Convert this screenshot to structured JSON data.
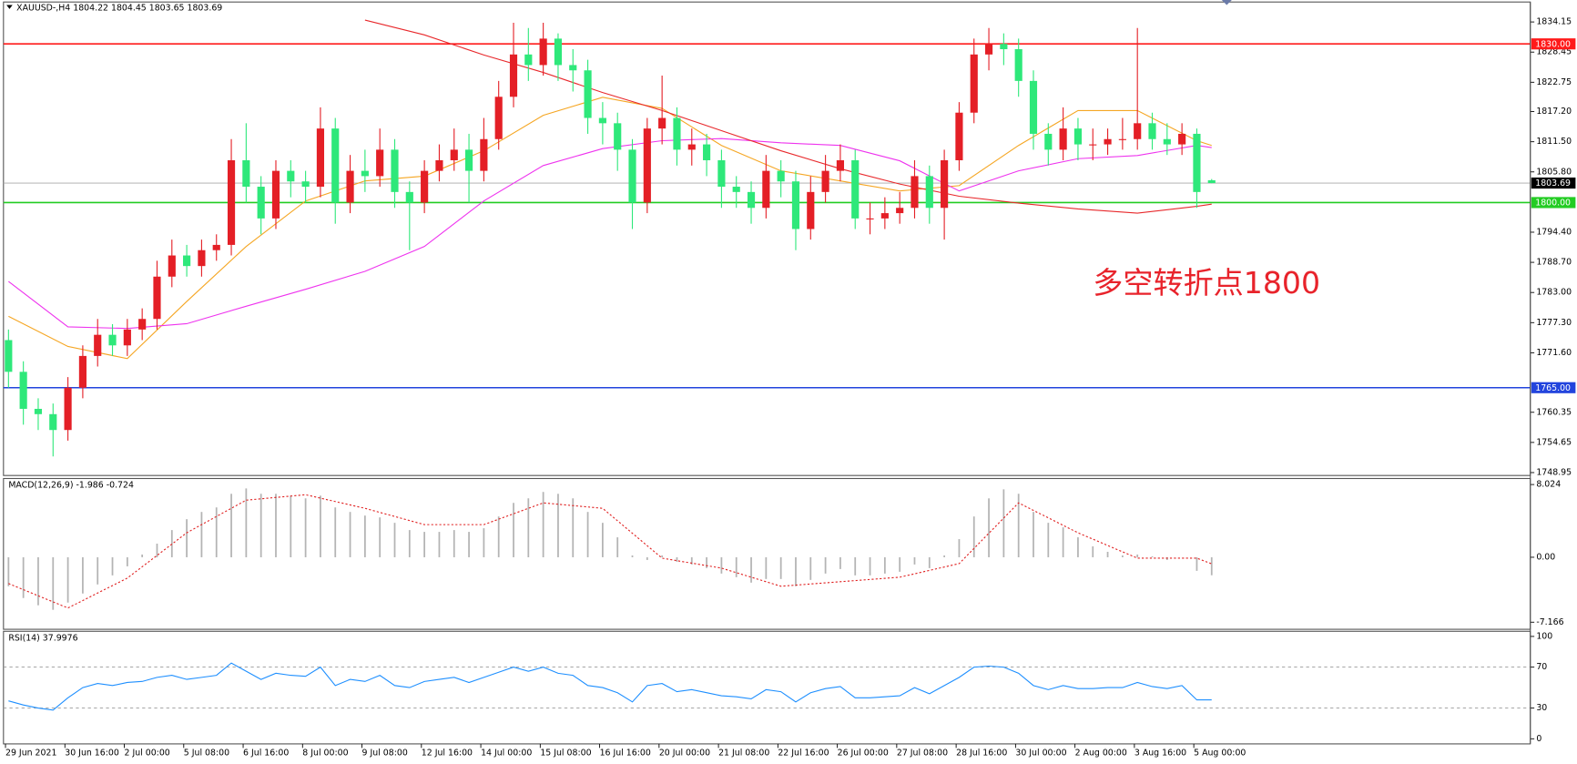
{
  "chart_data": [
    {
      "type": "candlestick",
      "title": "XAUUSD-,H4  1804.22 1804.45 1803.65 1803.69",
      "up_color": "#e41f26",
      "down_color": "#2ee87a",
      "open": [
        1774,
        1768,
        1761,
        1760,
        1757,
        1765,
        1771,
        1775,
        1773,
        1776,
        1778,
        1786,
        1790,
        1788,
        1791,
        1792,
        1808,
        1803,
        1797,
        1806,
        1804,
        1803,
        1814,
        1800,
        1806,
        1805,
        1810,
        1802,
        1800,
        1806,
        1808,
        1810,
        1806,
        1812,
        1820,
        1828,
        1826,
        1831,
        1826,
        1825,
        1816,
        1815,
        1810,
        1800,
        1814,
        1816,
        1810,
        1811,
        1808,
        1803,
        1802,
        1799,
        1806,
        1804,
        1795,
        1802,
        1806,
        1808,
        1797,
        1797,
        1798,
        1799,
        1805,
        1799,
        1808,
        1817,
        1828,
        1830,
        1829,
        1823,
        1813,
        1810,
        1814,
        1811,
        1811,
        1812,
        1812,
        1815,
        1812,
        1811,
        1813,
        1804.22
      ],
      "high": [
        1776,
        1770,
        1763,
        1762,
        1767,
        1773,
        1778,
        1777,
        1778,
        1780,
        1789,
        1793,
        1792,
        1793,
        1794,
        1812,
        1815,
        1805,
        1808,
        1808,
        1806,
        1818,
        1816,
        1809,
        1810,
        1814,
        1812,
        1804,
        1808,
        1811,
        1814,
        1813,
        1816,
        1823,
        1834,
        1833,
        1834,
        1832,
        1829,
        1827,
        1819,
        1817,
        1812,
        1816,
        1824,
        1818,
        1814,
        1813,
        1810,
        1805,
        1804,
        1809,
        1808,
        1806,
        1805,
        1809,
        1811,
        1810,
        1800,
        1801,
        1802,
        1808,
        1807,
        1810,
        1819,
        1831,
        1833,
        1832,
        1831,
        1825,
        1815,
        1818,
        1816,
        1814,
        1814,
        1816,
        1833,
        1817,
        1815,
        1815,
        1814,
        1804.45
      ],
      "low": [
        1765,
        1758,
        1757,
        1752,
        1755,
        1763,
        1769,
        1771,
        1771,
        1774,
        1776,
        1784,
        1786,
        1786,
        1789,
        1790,
        1800,
        1794,
        1795,
        1801,
        1800,
        1801,
        1796,
        1798,
        1802,
        1803,
        1799,
        1791,
        1798,
        1804,
        1806,
        1800,
        1804,
        1810,
        1818,
        1823,
        1824,
        1823,
        1821,
        1813,
        1811,
        1806,
        1795,
        1798,
        1811,
        1807,
        1807,
        1805,
        1799,
        1799,
        1796,
        1797,
        1801,
        1791,
        1793,
        1800,
        1804,
        1795,
        1794,
        1795,
        1796,
        1797,
        1796,
        1793,
        1806,
        1815,
        1825,
        1826,
        1820,
        1810,
        1807,
        1808,
        1808,
        1808,
        1809,
        1810,
        1810,
        1810,
        1809,
        1809,
        1799,
        1803.65
      ],
      "close": [
        1768,
        1761,
        1760,
        1757,
        1765,
        1771,
        1775,
        1773,
        1776,
        1778,
        1786,
        1790,
        1788,
        1791,
        1792,
        1808,
        1803,
        1797,
        1806,
        1804,
        1803,
        1814,
        1800,
        1806,
        1805,
        1810,
        1802,
        1800,
        1806,
        1808,
        1810,
        1806,
        1812,
        1820,
        1828,
        1826,
        1831,
        1826,
        1825,
        1816,
        1815,
        1810,
        1800,
        1814,
        1816,
        1810,
        1811,
        1808,
        1803,
        1802,
        1799,
        1806,
        1804,
        1795,
        1802,
        1806,
        1808,
        1797,
        1797,
        1798,
        1799,
        1805,
        1799,
        1808,
        1817,
        1828,
        1830,
        1829,
        1823,
        1813,
        1810,
        1814,
        1811,
        1811,
        1812,
        1812,
        1815,
        1812,
        1811,
        1813,
        1802,
        1803.69
      ],
      "ma_x": [
        0,
        4,
        8,
        12,
        16,
        20,
        24,
        28,
        32,
        36,
        40,
        44,
        48,
        52,
        56,
        60,
        64,
        68,
        72,
        76,
        80,
        81
      ],
      "lines": [
        {
          "color": "#f5a623",
          "values": [
            1778.5,
            1772.8,
            1770.5,
            1781.3,
            1791.7,
            1800.3,
            1804.1,
            1805,
            1809.8,
            1816.5,
            1819.9,
            1817.8,
            1810.8,
            1806,
            1804.1,
            1802.2,
            1803.2,
            1810.8,
            1817.4,
            1817.4,
            1811.7,
            1810.8
          ]
        },
        {
          "color": "#ee33ee",
          "values": [
            1785.1,
            1776.5,
            1776.2,
            1777.1,
            1780.4,
            1783.6,
            1787,
            1791.7,
            1800.3,
            1807,
            1810.2,
            1811.7,
            1812.1,
            1811.3,
            1810.8,
            1807.9,
            1802.2,
            1806,
            1808.3,
            1808.9,
            1810.8,
            1810.4
          ]
        },
        {
          "color": "#e8282b",
          "values": [
            null,
            null,
            null,
            null,
            null,
            null,
            1834.5,
            1831.7,
            1827.9,
            1824.6,
            1820.8,
            1817.4,
            1813.6,
            1809.8,
            1806.4,
            1803.5,
            1801.2,
            1799.9,
            1798.8,
            1798,
            1799.3,
            1799.7
          ]
        }
      ],
      "levels": [
        {
          "value": 1830,
          "label": "1830.00",
          "color": "#ff1a1a",
          "box": "#ff1a1a"
        },
        {
          "value": 1800,
          "label": "1800.00",
          "color": "#22cc22",
          "box": "#22cc22"
        },
        {
          "value": 1765,
          "label": "1765.00",
          "color": "#2244dd",
          "box": "#2244dd"
        },
        {
          "value": 1803.69,
          "color": "#a8a8a8",
          "box": "#000000"
        }
      ],
      "annotation": {
        "text": "多空转折点1800",
        "color": "#e8232b",
        "x": 73,
        "y": 1784.5
      },
      "ylim": [
        1748.4,
        1838.3
      ],
      "yticks": [
        1834.15,
        1828.45,
        1822.75,
        {
          "value": 1817.2,
          "label": "1817.20"
        },
        {
          "value": 1811.5,
          "label": "1811.50"
        },
        {
          "value": 1805.8,
          "label": "1805.80"
        },
        {
          "value": 1794.4,
          "label": "1794.40"
        },
        {
          "value": 1788.7,
          "label": "1788.70"
        },
        {
          "value": 1783,
          "label": "1783.00"
        },
        {
          "value": 1777.3,
          "label": "1777.30"
        },
        {
          "value": 1771.6,
          "label": "1771.60"
        },
        1760.35,
        1754.65,
        1748.95
      ],
      "xticks": [
        {
          "value": 0,
          "label": "29 Jun 2021"
        },
        {
          "value": 4,
          "label": "30 Jun 16:00"
        },
        {
          "value": 8,
          "label": "2 Jul 00:00"
        },
        {
          "value": 12,
          "label": "5 Jul 08:00"
        },
        {
          "value": 16,
          "label": "6 Jul 16:00"
        },
        {
          "value": 20,
          "label": "8 Jul 00:00"
        },
        {
          "value": 24,
          "label": "9 Jul 08:00"
        },
        {
          "value": 28,
          "label": "12 Jul 16:00"
        },
        {
          "value": 32,
          "label": "14 Jul 00:00"
        },
        {
          "value": 36,
          "label": "15 Jul 08:00"
        },
        {
          "value": 40,
          "label": "16 Jul 16:00"
        },
        {
          "value": 44,
          "label": "20 Jul 00:00"
        },
        {
          "value": 48,
          "label": "21 Jul 08:00"
        },
        {
          "value": 52,
          "label": "22 Jul 16:00"
        },
        {
          "value": 56,
          "label": "26 Jul 00:00"
        },
        {
          "value": 60,
          "label": "27 Jul 08:00"
        },
        {
          "value": 64,
          "label": "28 Jul 16:00"
        },
        {
          "value": 68,
          "label": "30 Jul 00:00"
        },
        {
          "value": 72,
          "label": "2 Aug 00:00"
        },
        {
          "value": 76,
          "label": "3 Aug 16:00"
        },
        {
          "value": 80,
          "label": "5 Aug 00:00"
        }
      ]
    },
    {
      "type": "macd",
      "title": "MACD(12,26,9) -1.986 -0.724",
      "bar_color": "#b4b4b4",
      "signal_color": "#e02020",
      "histogram": [
        -3.2,
        -4.5,
        -5.3,
        -5.8,
        -5,
        -4,
        -3,
        -2,
        -1,
        0.3,
        1.5,
        3,
        4.2,
        5,
        5.5,
        7,
        7.6,
        7,
        7,
        6.8,
        6.5,
        6.8,
        5.5,
        5,
        4.6,
        4.4,
        3.8,
        3,
        2.8,
        2.8,
        3,
        2.8,
        3.2,
        4.5,
        6,
        6.5,
        7.2,
        7,
        6.5,
        5,
        3.8,
        2.2,
        0.2,
        -0.3,
        0.2,
        -0.5,
        -0.8,
        -1.2,
        -1.8,
        -2.2,
        -2.8,
        -2.4,
        -2.4,
        -3.2,
        -2.5,
        -1.8,
        -1.3,
        -2,
        -2,
        -1.8,
        -1.6,
        -0.8,
        -1.2,
        0.2,
        2,
        4.5,
        6.5,
        7.5,
        7,
        5,
        3.8,
        3.3,
        2.2,
        1.2,
        0.6,
        0.2,
        0.3,
        0.1,
        -0.3,
        0,
        -1.5,
        -1.986
      ],
      "signal_x": [
        0,
        4,
        8,
        12,
        16,
        20,
        24,
        28,
        32,
        36,
        40,
        44,
        48,
        52,
        56,
        60,
        64,
        68,
        72,
        76,
        80,
        81
      ],
      "signal": [
        -2.9,
        -5.6,
        -2.3,
        2.7,
        6.3,
        6.9,
        5.4,
        3.6,
        3.6,
        6,
        5.4,
        -0.1,
        -1.2,
        -3.2,
        -2.7,
        -2.2,
        -0.7,
        6,
        2.7,
        -0.1,
        -0.1,
        -0.724
      ],
      "ylim": [
        -7.95,
        8.69
      ],
      "yticks": [
        8.024,
        {
          "value": 0,
          "label": "0.00"
        },
        -7.166
      ]
    },
    {
      "type": "rsi",
      "title": "RSI(14) 37.9976",
      "color": "#1e8fff",
      "values": [
        37,
        33,
        30,
        28,
        40,
        50,
        54,
        52,
        55,
        56,
        60,
        62,
        58,
        60,
        62,
        74,
        66,
        58,
        64,
        62,
        61,
        70,
        52,
        58,
        56,
        62,
        52,
        50,
        56,
        58,
        60,
        55,
        60,
        65,
        70,
        66,
        70,
        64,
        62,
        52,
        50,
        45,
        36,
        52,
        54,
        46,
        48,
        45,
        42,
        41,
        39,
        48,
        46,
        36,
        45,
        49,
        51,
        40,
        40,
        41,
        42,
        50,
        44,
        52,
        60,
        70,
        71,
        70,
        64,
        52,
        48,
        52,
        49,
        49,
        50,
        50,
        55,
        51,
        49,
        52,
        38,
        37.9976
      ],
      "levels": [
        70,
        30
      ],
      "ylim": [
        -5,
        105
      ],
      "yticks": [
        100,
        70,
        30,
        0
      ]
    }
  ]
}
